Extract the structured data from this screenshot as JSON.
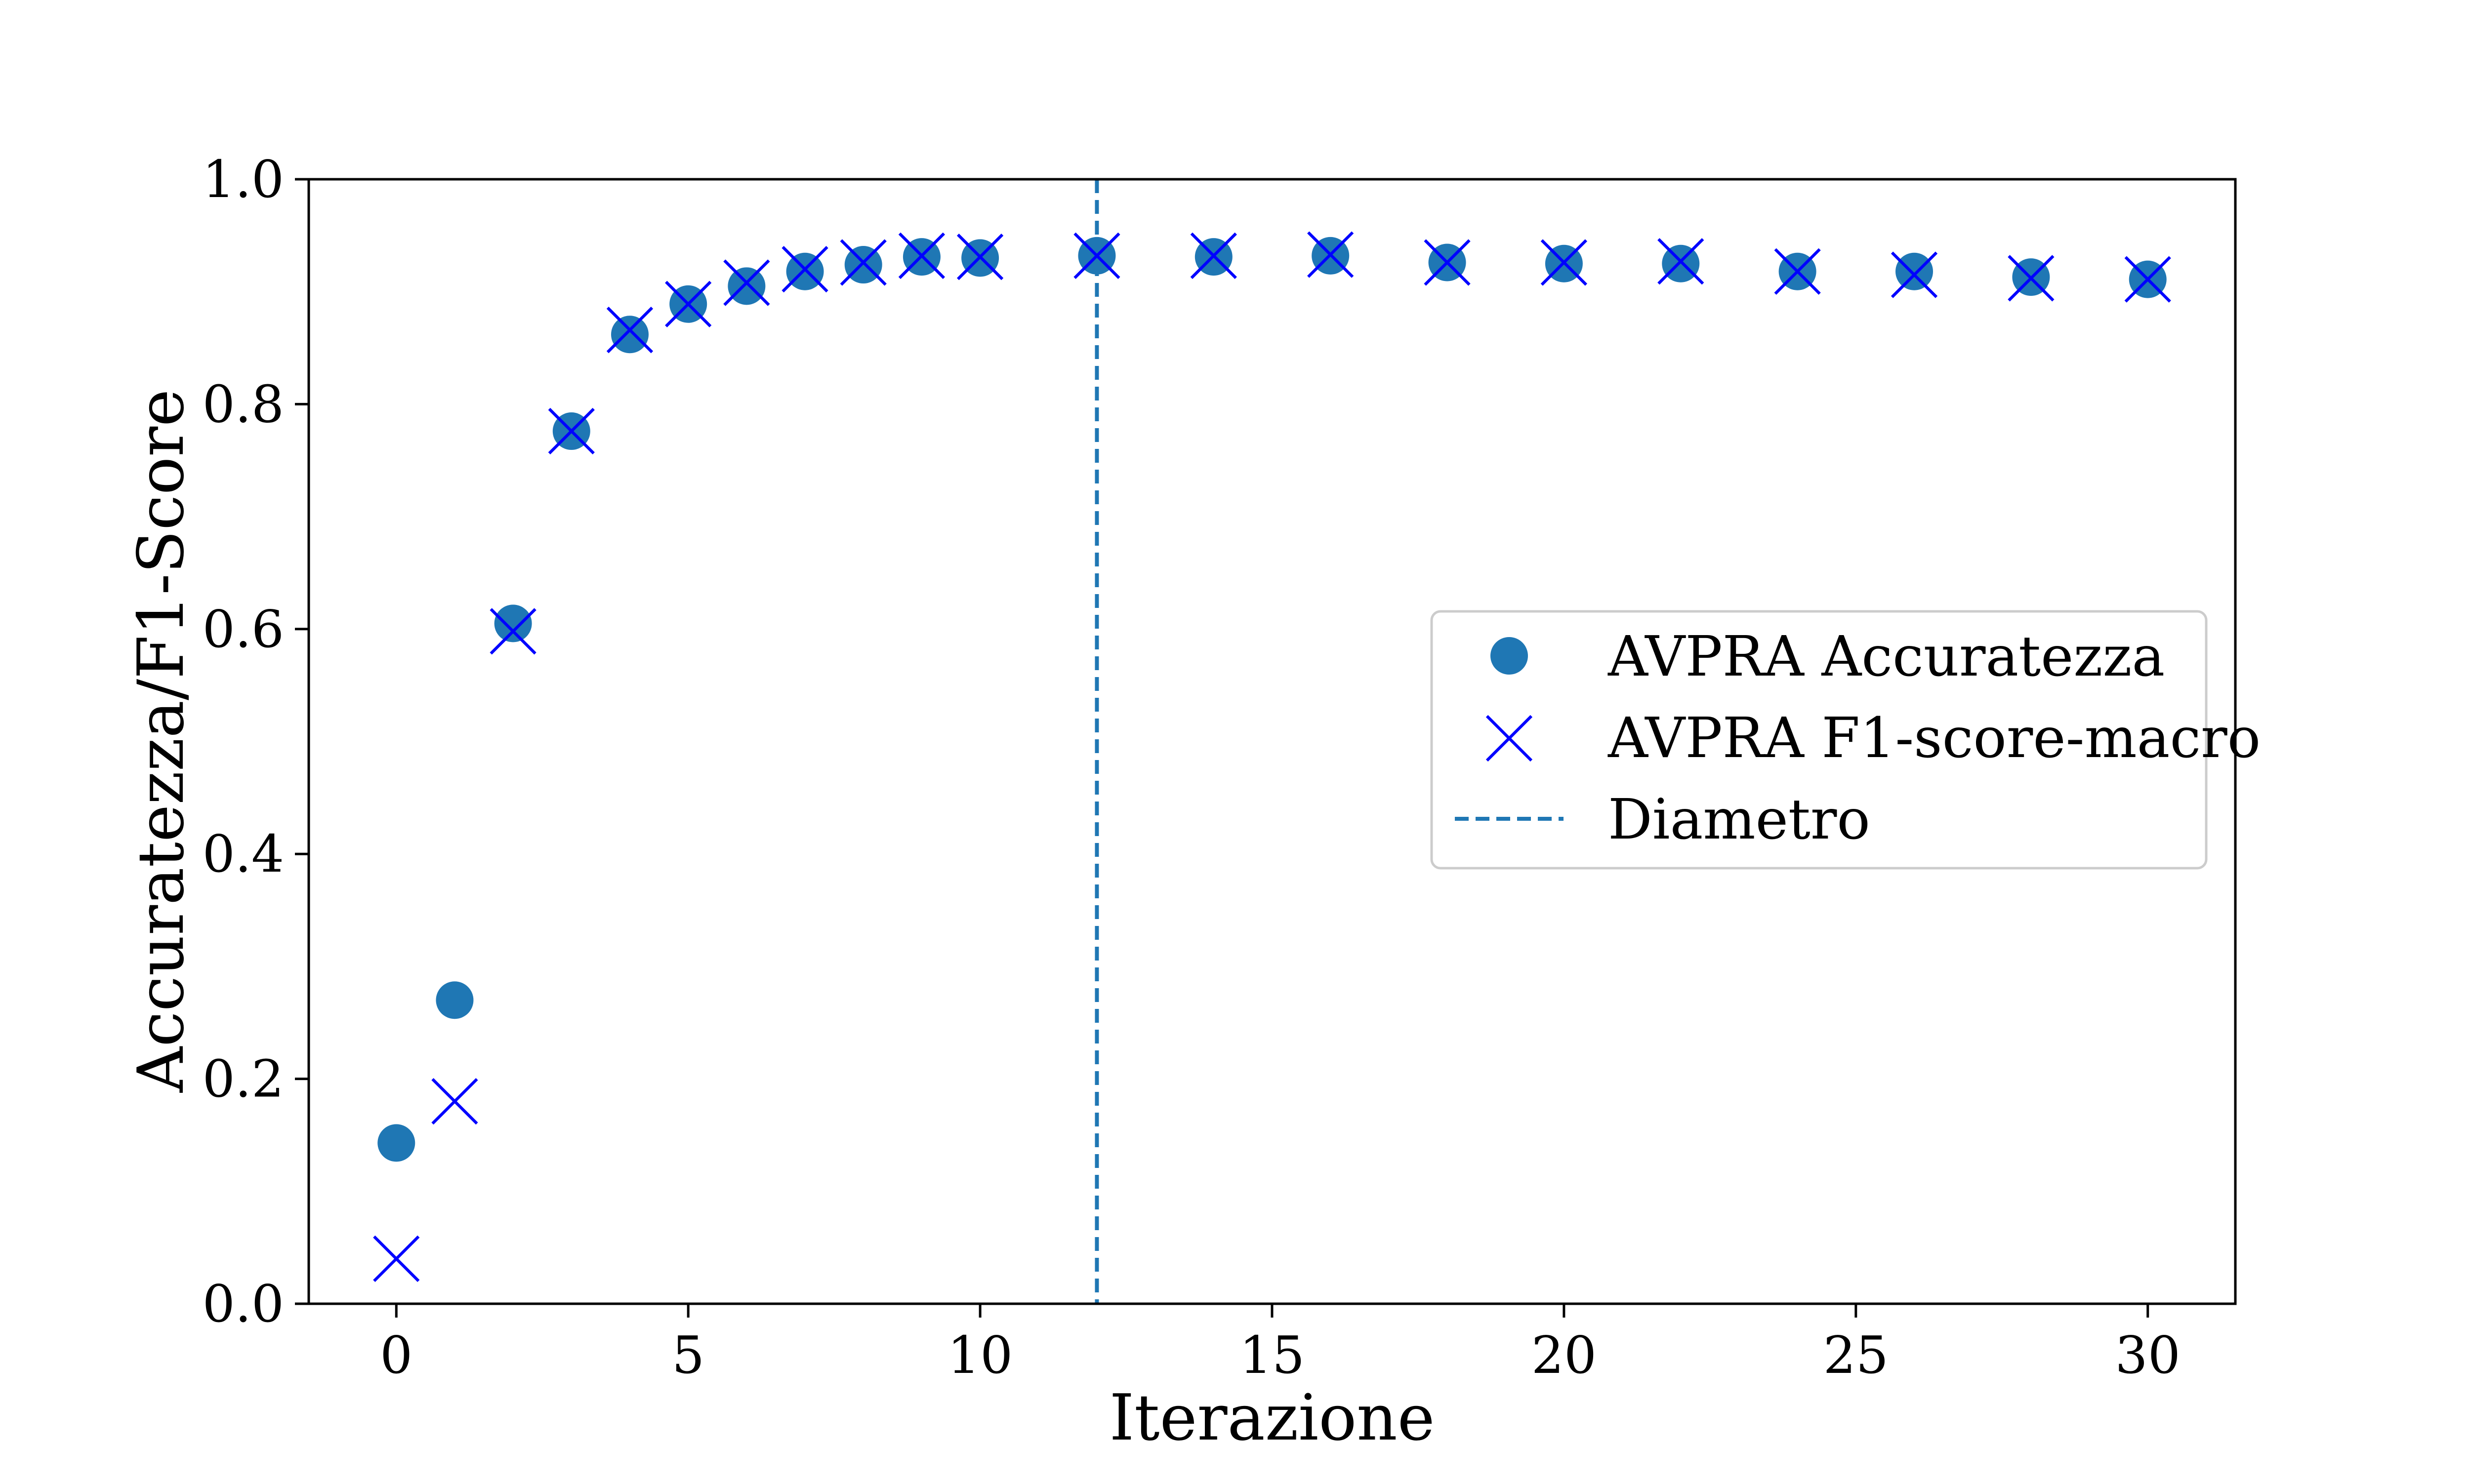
{
  "chart_data": {
    "type": "scatter",
    "xlabel": "Iterazione",
    "ylabel": "Accuratezza/F1-Score",
    "xlim": [
      -1.5,
      31.5
    ],
    "ylim": [
      0.0,
      1.0
    ],
    "x_ticks": [
      0,
      5,
      10,
      15,
      20,
      25,
      30
    ],
    "x_tick_labels": [
      "0",
      "5",
      "10",
      "15",
      "20",
      "25",
      "30"
    ],
    "y_ticks": [
      0.0,
      0.2,
      0.4,
      0.6,
      0.8,
      1.0
    ],
    "y_tick_labels": [
      "0.0",
      "0.2",
      "0.4",
      "0.6",
      "0.8",
      "1.0"
    ],
    "grid": false,
    "legend_position": "center-right",
    "series": [
      {
        "name": "AVPRA Accuratezza",
        "marker": "circle",
        "color": "#1f77b4",
        "points": [
          [
            0,
            0.143
          ],
          [
            1,
            0.27
          ],
          [
            2,
            0.605
          ],
          [
            3,
            0.776
          ],
          [
            4,
            0.862
          ],
          [
            5,
            0.889
          ],
          [
            6,
            0.905
          ],
          [
            7,
            0.918
          ],
          [
            8,
            0.924
          ],
          [
            9,
            0.931
          ],
          [
            10,
            0.93
          ],
          [
            12,
            0.932
          ],
          [
            14,
            0.931
          ],
          [
            16,
            0.932
          ],
          [
            18,
            0.926
          ],
          [
            20,
            0.925
          ],
          [
            22,
            0.925
          ],
          [
            24,
            0.918
          ],
          [
            26,
            0.918
          ],
          [
            28,
            0.913
          ],
          [
            30,
            0.911
          ]
        ]
      },
      {
        "name": "AVPRA F1-score-macro",
        "marker": "x",
        "color": "#0000ff",
        "points": [
          [
            0,
            0.04
          ],
          [
            1,
            0.18
          ],
          [
            2,
            0.598
          ],
          [
            3,
            0.776
          ],
          [
            4,
            0.866
          ],
          [
            5,
            0.889
          ],
          [
            6,
            0.908
          ],
          [
            7,
            0.92
          ],
          [
            8,
            0.926
          ],
          [
            9,
            0.932
          ],
          [
            10,
            0.931
          ],
          [
            12,
            0.932
          ],
          [
            14,
            0.932
          ],
          [
            16,
            0.933
          ],
          [
            18,
            0.926
          ],
          [
            20,
            0.926
          ],
          [
            22,
            0.927
          ],
          [
            24,
            0.918
          ],
          [
            26,
            0.915
          ],
          [
            28,
            0.912
          ],
          [
            30,
            0.911
          ]
        ]
      }
    ],
    "vertical_line": {
      "name": "Diametro",
      "x": 12,
      "style": "dashed",
      "color": "#1f77b4"
    }
  }
}
